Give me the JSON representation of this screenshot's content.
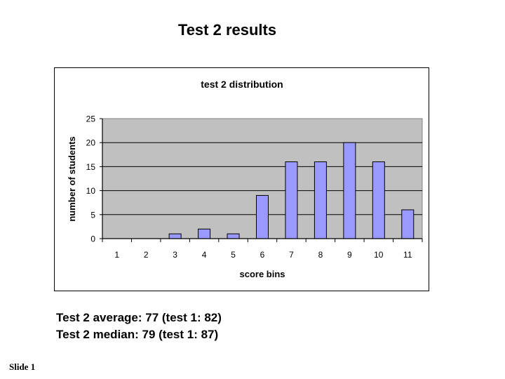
{
  "slide": {
    "title": "Test 2 results",
    "stats": [
      "Test 2 average: 77 (test 1: 82)",
      "Test 2 median: 79 (test 1: 87)"
    ],
    "footer": "Slide 1"
  },
  "colors": {
    "bar_fill": "#9999FF",
    "bar_stroke": "#000000",
    "plot_bg": "#C0C0C0",
    "gridline": "#000000"
  },
  "chart_data": {
    "type": "bar",
    "title": "test 2 distribution",
    "xlabel": "score bins",
    "ylabel": "number of students",
    "categories": [
      "1",
      "2",
      "3",
      "4",
      "5",
      "6",
      "7",
      "8",
      "9",
      "10",
      "11"
    ],
    "values": [
      0,
      0,
      1,
      2,
      1,
      9,
      16,
      16,
      20,
      16,
      6
    ],
    "ylim": [
      0,
      25
    ],
    "yticks": [
      0,
      5,
      10,
      15,
      20,
      25
    ],
    "grid": true,
    "legend": "none"
  }
}
